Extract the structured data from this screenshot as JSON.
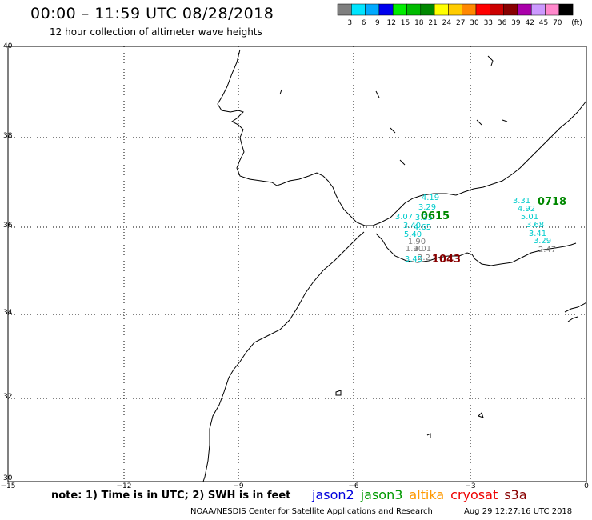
{
  "title": "00:00 – 11:59 UTC 08/28/2018",
  "subtitle": "12 hour collection of altimeter wave heights",
  "legend": {
    "unit": "(ft)",
    "bins": [
      {
        "label": "3",
        "color": "#7f7f7f"
      },
      {
        "label": "6",
        "color": "#00e5ff"
      },
      {
        "label": "9",
        "color": "#00aaff"
      },
      {
        "label": "12",
        "color": "#0000ee"
      },
      {
        "label": "15",
        "color": "#00ee00"
      },
      {
        "label": "18",
        "color": "#00bb00"
      },
      {
        "label": "21",
        "color": "#008800"
      },
      {
        "label": "24",
        "color": "#ffff00"
      },
      {
        "label": "27",
        "color": "#ffcc00"
      },
      {
        "label": "30",
        "color": "#ff8800"
      },
      {
        "label": "33",
        "color": "#ff0000"
      },
      {
        "label": "36",
        "color": "#cc0000"
      },
      {
        "label": "39",
        "color": "#880000"
      },
      {
        "label": "42",
        "color": "#aa00aa"
      },
      {
        "label": "45",
        "color": "#cc99ff"
      },
      {
        "label": "70",
        "color": "#ff88cc"
      },
      {
        "label": "",
        "color": "#000000"
      }
    ]
  },
  "axes": {
    "lat_labels": [
      "40",
      "38",
      "36",
      "34",
      "32",
      "30"
    ],
    "lon_labels": [
      "−15",
      "−12",
      "−9",
      "−6",
      "−3",
      "0"
    ]
  },
  "passes": [
    {
      "time": "0615",
      "color": "#008800"
    },
    {
      "time": "0718",
      "color": "#008800"
    },
    {
      "time": "1043",
      "color": "#880000"
    }
  ],
  "points": [
    {
      "value": "4.19",
      "color": "#00cccc"
    },
    {
      "value": "3.29",
      "color": "#00cccc"
    },
    {
      "value": "3.07",
      "color": "#00cccc"
    },
    {
      "value": "3.35",
      "color": "#00cccc"
    },
    {
      "value": "3.40",
      "color": "#00cccc"
    },
    {
      "value": "4.65",
      "color": "#00cccc"
    },
    {
      "value": "5.40",
      "color": "#00cccc"
    },
    {
      "value": "1.90",
      "color": "#7f7f7f"
    },
    {
      "value": "1.90",
      "color": "#7f7f7f"
    },
    {
      "value": "1.01",
      "color": "#7f7f7f"
    },
    {
      "value": "3.45",
      "color": "#00cccc"
    },
    {
      "value": "2.2",
      "color": "#7f7f7f"
    },
    {
      "value": "3.31",
      "color": "#00cccc"
    },
    {
      "value": "4.92",
      "color": "#00cccc"
    },
    {
      "value": "5.01",
      "color": "#00cccc"
    },
    {
      "value": "3.68",
      "color": "#00cccc"
    },
    {
      "value": "3.41",
      "color": "#00cccc"
    },
    {
      "value": "3.29",
      "color": "#00cccc"
    },
    {
      "value": "2.47",
      "color": "#7f7f7f"
    }
  ],
  "note": "note: 1) Time is in UTC; 2) SWH is in feet",
  "satellites": [
    {
      "name": "jason2",
      "color": "#0000dd"
    },
    {
      "name": "jason3",
      "color": "#009900"
    },
    {
      "name": "altika",
      "color": "#ff9900"
    },
    {
      "name": "cryosat",
      "color": "#ee0000"
    },
    {
      "name": "s3a",
      "color": "#880000"
    }
  ],
  "credit": "NOAA/NESDIS Center for Satellite Applications and Research",
  "timestamp": "Aug 29 12:27:16 UTC 2018"
}
